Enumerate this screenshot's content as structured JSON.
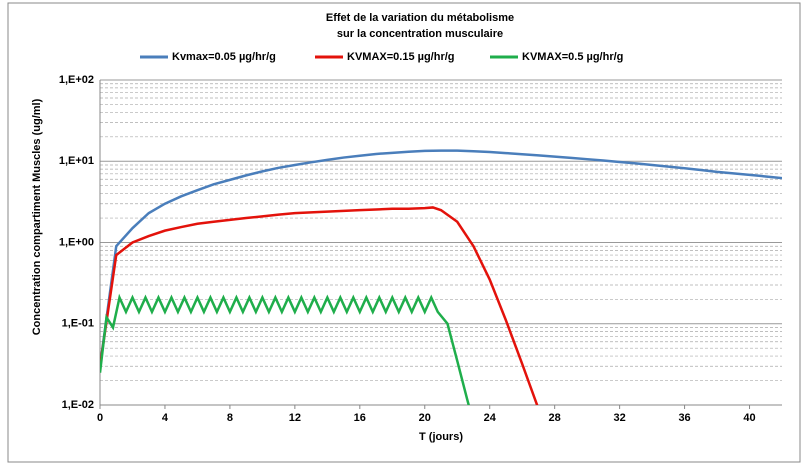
{
  "chart_data": {
    "type": "line",
    "title": "Effet de la variation du métabolisme",
    "subtitle": "sur la concentration musculaire",
    "x_label": "T (jours)",
    "y_label": "Concentration compartiment  Muscles  (ug/ml)",
    "log_y": true,
    "grid": true,
    "minor_grid": true,
    "legend": "top",
    "xlim": [
      0,
      42
    ],
    "xticks": [
      0,
      4,
      8,
      12,
      16,
      20,
      24,
      28,
      32,
      36,
      40
    ],
    "ylim": [
      0.01,
      100
    ],
    "yticks": [
      {
        "value": 0.01,
        "label": "1,E-02"
      },
      {
        "value": 0.1,
        "label": "1,E-01"
      },
      {
        "value": 1,
        "label": "1,E+00"
      },
      {
        "value": 10,
        "label": "1,E+01"
      },
      {
        "value": 100,
        "label": "1,E+02"
      }
    ],
    "series": [
      {
        "name": "Kvmax=0.05 µg/hr/g",
        "color": "#4a7ebb",
        "x": [
          0,
          1,
          2,
          3,
          4,
          5,
          6,
          7,
          8,
          9,
          10,
          11,
          12,
          13,
          14,
          15,
          16,
          17,
          18,
          19,
          20,
          21,
          22,
          23,
          24,
          25,
          26,
          27,
          28,
          29,
          30,
          31,
          32,
          33,
          34,
          35,
          36,
          37,
          38,
          39,
          40,
          41,
          42
        ],
        "values": [
          0.03,
          0.9,
          1.5,
          2.3,
          3.0,
          3.7,
          4.4,
          5.2,
          5.9,
          6.7,
          7.5,
          8.3,
          9.0,
          9.7,
          10.4,
          11.1,
          11.7,
          12.3,
          12.7,
          13.1,
          13.4,
          13.5,
          13.5,
          13.3,
          13.0,
          12.6,
          12.2,
          11.8,
          11.4,
          11.0,
          10.6,
          10.2,
          9.8,
          9.4,
          9.0,
          8.6,
          8.2,
          7.8,
          7.4,
          7.1,
          6.8,
          6.5,
          6.2
        ]
      },
      {
        "name": "KVMAX=0.15 µg/hr/g",
        "color": "#e3120b",
        "x": [
          0,
          1,
          2,
          3,
          4,
          5,
          6,
          7,
          8,
          9,
          10,
          11,
          12,
          13,
          14,
          15,
          16,
          17,
          18,
          19,
          20,
          20.5,
          21,
          22,
          23,
          24,
          25,
          26,
          27
        ],
        "values": [
          0.03,
          0.7,
          1.0,
          1.2,
          1.4,
          1.55,
          1.7,
          1.8,
          1.9,
          2.0,
          2.1,
          2.2,
          2.3,
          2.35,
          2.4,
          2.45,
          2.5,
          2.55,
          2.6,
          2.6,
          2.65,
          2.7,
          2.5,
          1.8,
          0.9,
          0.35,
          0.11,
          0.032,
          0.009
        ]
      },
      {
        "name": "KVMAX=0.5 µg/hr/g",
        "color": "#1fae4b",
        "x": [
          0,
          0.4,
          0.8,
          1.2,
          1.6,
          2.0,
          2.4,
          2.8,
          3.2,
          3.6,
          4.0,
          4.4,
          4.8,
          5.2,
          5.6,
          6.0,
          6.4,
          6.8,
          7.2,
          7.6,
          8.0,
          8.4,
          8.8,
          9.2,
          9.6,
          10.0,
          10.4,
          10.8,
          11.2,
          11.6,
          12.0,
          12.4,
          12.8,
          13.2,
          13.6,
          14.0,
          14.4,
          14.8,
          15.2,
          15.6,
          16.0,
          16.4,
          16.8,
          17.2,
          17.6,
          18.0,
          18.4,
          18.8,
          19.2,
          19.6,
          20.0,
          20.4,
          20.8,
          21.4,
          22,
          22.6,
          23
        ],
        "values": [
          0.025,
          0.12,
          0.09,
          0.21,
          0.14,
          0.21,
          0.14,
          0.21,
          0.14,
          0.21,
          0.14,
          0.21,
          0.14,
          0.21,
          0.14,
          0.21,
          0.14,
          0.21,
          0.14,
          0.21,
          0.14,
          0.21,
          0.14,
          0.21,
          0.14,
          0.21,
          0.14,
          0.21,
          0.14,
          0.21,
          0.14,
          0.21,
          0.14,
          0.21,
          0.14,
          0.21,
          0.14,
          0.21,
          0.14,
          0.21,
          0.14,
          0.21,
          0.14,
          0.21,
          0.14,
          0.21,
          0.14,
          0.21,
          0.14,
          0.21,
          0.14,
          0.21,
          0.14,
          0.1,
          0.035,
          0.012,
          0.006
        ]
      }
    ]
  }
}
